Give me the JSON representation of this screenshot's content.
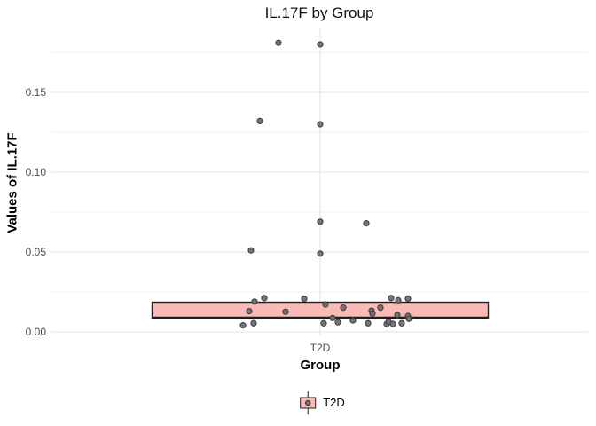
{
  "chart_data": {
    "type": "boxplot",
    "title": "IL.17F by Group",
    "xlabel": "Group",
    "ylabel": "Values of IL.17F",
    "categories": [
      "T2D"
    ],
    "y_ticks": [
      "0.00",
      "0.05",
      "0.10",
      "0.15"
    ],
    "y_tick_values": [
      0,
      0.05,
      0.1,
      0.15
    ],
    "y_minor_values": [
      0.025,
      0.075,
      0.125,
      0.175
    ],
    "ylim": [
      -0.004,
      0.19
    ],
    "grid": "major and minor horizontal, major vertical at category",
    "legend": {
      "position": "bottom",
      "entries": [
        {
          "label": "T2D",
          "fill": "#F9BBB7"
        }
      ]
    },
    "series": [
      {
        "name": "T2D",
        "box": {
          "q1": 0.0086,
          "median": 0.009,
          "q3": 0.0186
        },
        "points_dx_value": [
          [
            -47,
            0.181
          ],
          [
            0,
            0.18
          ],
          [
            -68,
            0.132
          ],
          [
            0,
            0.13
          ],
          [
            0,
            0.069
          ],
          [
            52,
            0.068
          ],
          [
            -78,
            0.051
          ],
          [
            0,
            0.049
          ],
          [
            -74,
            0.019
          ],
          [
            -63,
            0.0212
          ],
          [
            -18,
            0.0208
          ],
          [
            -80,
            0.013
          ],
          [
            -39,
            0.0126
          ],
          [
            6,
            0.0172
          ],
          [
            -87,
            0.0041
          ],
          [
            -75,
            0.0054
          ],
          [
            4,
            0.0054
          ],
          [
            14,
            0.0087
          ],
          [
            20,
            0.006
          ],
          [
            26,
            0.0152
          ],
          [
            58,
            0.0133
          ],
          [
            59,
            0.0115
          ],
          [
            68,
            0.0152
          ],
          [
            80,
            0.0212
          ],
          [
            88,
            0.0198
          ],
          [
            99,
            0.0208
          ],
          [
            87,
            0.0106
          ],
          [
            99,
            0.01
          ],
          [
            100,
            0.0082
          ],
          [
            37,
            0.0072
          ],
          [
            54,
            0.0054
          ],
          [
            75,
            0.005
          ],
          [
            77,
            0.0063
          ],
          [
            82,
            0.005
          ],
          [
            92,
            0.0054
          ]
        ]
      }
    ],
    "colors": {
      "box_fill": "#F9BBB7",
      "box_stroke": "#1F1F1F",
      "point_fill": "#6E6E6E",
      "point_stroke": "#3A3A3A",
      "grid_major": "#E3E3E3",
      "grid_minor": "#F0F0F0",
      "tick_label": "#4D4D4D",
      "text": "#000000"
    }
  }
}
